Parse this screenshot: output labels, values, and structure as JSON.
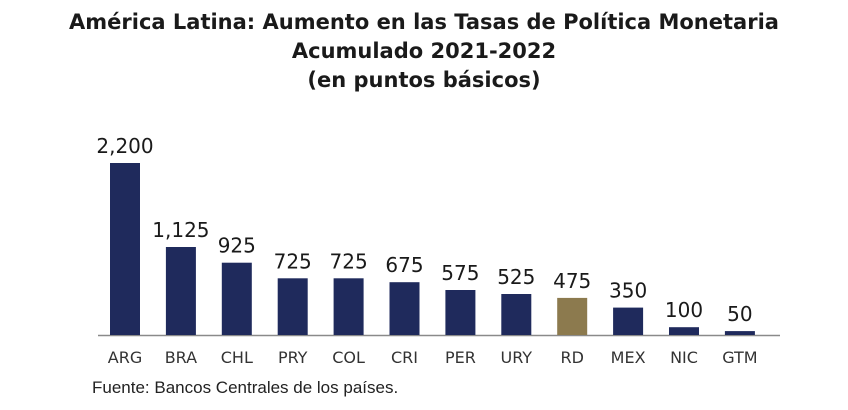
{
  "chart_data": {
    "type": "bar",
    "title": "América Latina: Aumento en las Tasas de Política Monetaria",
    "subtitle": "Acumulado 2021-2022",
    "unit_label": "(en puntos básicos)",
    "categories": [
      "ARG",
      "BRA",
      "CHL",
      "PRY",
      "COL",
      "CRI",
      "PER",
      "URY",
      "RD",
      "MEX",
      "NIC",
      "GTM"
    ],
    "values": [
      2200,
      1125,
      925,
      725,
      725,
      675,
      575,
      525,
      475,
      350,
      100,
      50
    ],
    "value_labels": [
      "2,200",
      "1,125",
      "925",
      "725",
      "725",
      "675",
      "575",
      "525",
      "475",
      "350",
      "100",
      "50"
    ],
    "colors": [
      "#1f2a5c",
      "#1f2a5c",
      "#1f2a5c",
      "#1f2a5c",
      "#1f2a5c",
      "#1f2a5c",
      "#1f2a5c",
      "#1f2a5c",
      "#8c7a4e",
      "#1f2a5c",
      "#1f2a5c",
      "#1f2a5c"
    ],
    "highlight": "RD",
    "xlabel": "",
    "ylabel": "",
    "ylim": [
      0,
      2200
    ],
    "grid": false,
    "legend": "none",
    "axis_color": "#8a8a8a"
  },
  "source": "Fuente: Bancos Centrales de los países."
}
